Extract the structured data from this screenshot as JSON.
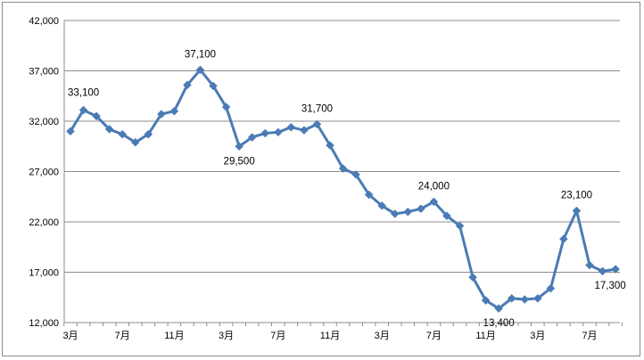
{
  "chart_data": {
    "type": "line",
    "title": "",
    "xlabel": "",
    "ylabel": "",
    "ylim": [
      12000,
      42000
    ],
    "y_ticks": [
      "12,000",
      "17,000",
      "22,000",
      "27,000",
      "32,000",
      "37,000",
      "42,000"
    ],
    "y_tick_values": [
      12000,
      17000,
      22000,
      27000,
      32000,
      37000,
      42000
    ],
    "x_tick_labels": [
      "3月",
      "7月",
      "11月",
      "3月",
      "7月",
      "11月",
      "3月",
      "7月",
      "11月",
      "3月",
      "7月"
    ],
    "x_tick_indices": [
      0,
      4,
      8,
      12,
      16,
      20,
      24,
      28,
      32,
      36,
      40
    ],
    "grid": true,
    "legend": "none",
    "series": [
      {
        "color": "#4a7bb5",
        "marker": "diamond",
        "values": [
          31000,
          33100,
          32500,
          31200,
          30700,
          29900,
          30700,
          32700,
          33000,
          35600,
          37100,
          35500,
          33400,
          29500,
          30400,
          30800,
          30900,
          31400,
          31100,
          31700,
          29600,
          27300,
          26700,
          24700,
          23600,
          22800,
          23000,
          23300,
          24000,
          22600,
          21600,
          16500,
          14200,
          13400,
          14400,
          14300,
          14400,
          15400,
          20300,
          23100,
          17700,
          17100,
          17300
        ]
      }
    ],
    "data_labels": [
      {
        "index": 1,
        "text": "33,100"
      },
      {
        "index": 10,
        "text": "37,100"
      },
      {
        "index": 13,
        "text": "29,500"
      },
      {
        "index": 19,
        "text": "31,700"
      },
      {
        "index": 28,
        "text": "24,000"
      },
      {
        "index": 33,
        "text": "13,400"
      },
      {
        "index": 39,
        "text": "23,100"
      },
      {
        "index": 42,
        "text": "17,300"
      }
    ]
  }
}
